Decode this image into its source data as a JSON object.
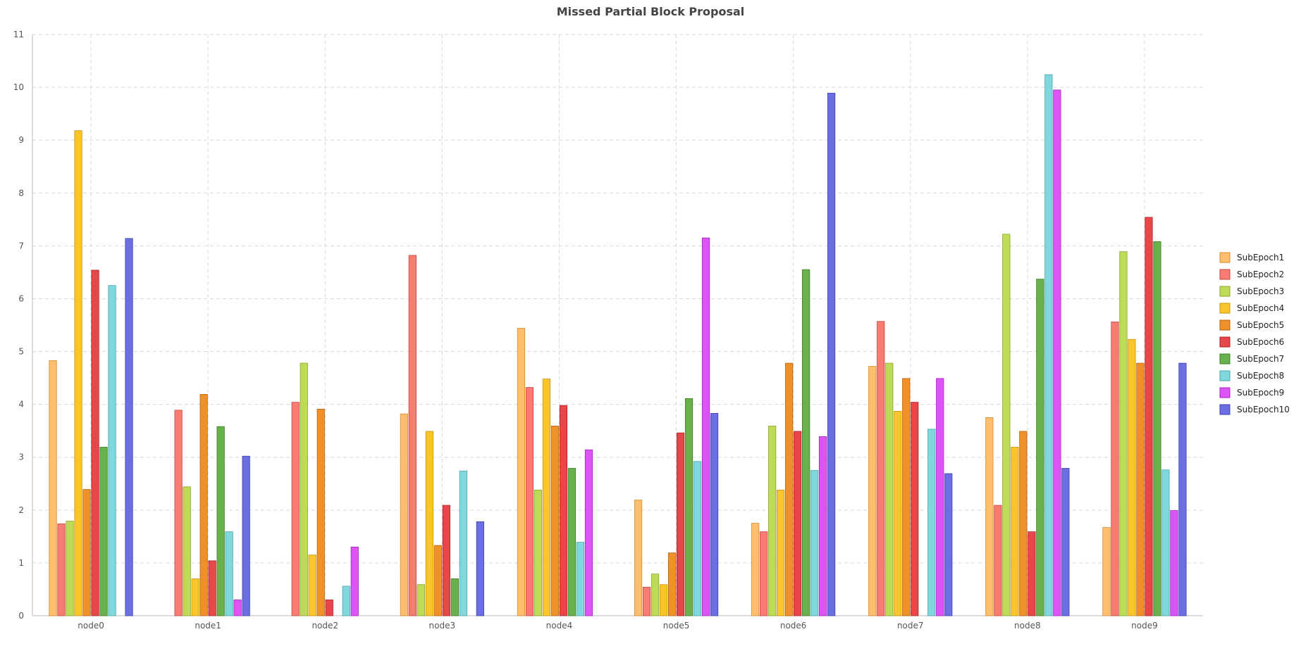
{
  "chart_data": {
    "type": "bar",
    "title": "Missed Partial Block Proposal",
    "xlabel": "",
    "ylabel": "",
    "ylim": [
      0,
      11
    ],
    "yticks": [
      "0",
      "1",
      "2",
      "3",
      "4",
      "5",
      "6",
      "7",
      "8",
      "9",
      "10",
      "11"
    ],
    "grid": true,
    "legend_position": "right",
    "categories": [
      "node0",
      "node1",
      "node2",
      "node3",
      "node4",
      "node5",
      "node6",
      "node7",
      "node8",
      "node9"
    ],
    "series": [
      {
        "name": "SubEpoch1",
        "color": "#fdbf6f",
        "stroke": "#d98a2b",
        "values": [
          4.83,
          0,
          0,
          3.82,
          5.44,
          2.19,
          1.75,
          4.72,
          3.75,
          1.67
        ]
      },
      {
        "name": "SubEpoch2",
        "color": "#f87c72",
        "stroke": "#c9463c",
        "values": [
          1.74,
          3.89,
          4.04,
          6.82,
          4.32,
          0.54,
          1.59,
          5.57,
          2.09,
          5.56
        ]
      },
      {
        "name": "SubEpoch3",
        "color": "#bedb55",
        "stroke": "#8aa52a",
        "values": [
          1.79,
          2.44,
          4.78,
          0.59,
          2.38,
          0.79,
          3.59,
          4.78,
          7.22,
          6.89
        ]
      },
      {
        "name": "SubEpoch4",
        "color": "#f9c52b",
        "stroke": "#c99612",
        "values": [
          9.18,
          0.7,
          1.15,
          3.49,
          4.48,
          0.59,
          2.38,
          3.87,
          3.19,
          5.23
        ]
      },
      {
        "name": "SubEpoch5",
        "color": "#ef9128",
        "stroke": "#b9640f",
        "values": [
          2.39,
          4.19,
          3.91,
          1.33,
          3.59,
          1.19,
          4.78,
          4.49,
          3.49,
          4.78
        ]
      },
      {
        "name": "SubEpoch6",
        "color": "#e8474a",
        "stroke": "#ad2124",
        "values": [
          6.54,
          1.04,
          0.3,
          2.09,
          3.98,
          3.46,
          3.49,
          4.04,
          1.59,
          7.54
        ]
      },
      {
        "name": "SubEpoch7",
        "color": "#6ab04c",
        "stroke": "#3f7d27",
        "values": [
          3.19,
          3.58,
          0,
          0.7,
          2.79,
          4.11,
          6.55,
          0,
          6.37,
          7.08
        ]
      },
      {
        "name": "SubEpoch8",
        "color": "#80d7dd",
        "stroke": "#4aa7ae",
        "values": [
          6.25,
          1.59,
          0.56,
          2.74,
          1.39,
          2.92,
          2.75,
          3.53,
          10.24,
          2.76
        ]
      },
      {
        "name": "SubEpoch9",
        "color": "#dc54f5",
        "stroke": "#a821c4",
        "values": [
          0,
          0.3,
          1.3,
          0,
          3.14,
          7.15,
          3.39,
          4.49,
          9.95,
          1.99
        ]
      },
      {
        "name": "SubEpoch10",
        "color": "#6b6fe2",
        "stroke": "#3d41ad",
        "values": [
          7.14,
          3.02,
          0,
          1.78,
          0,
          3.83,
          9.89,
          2.69,
          2.79,
          4.78
        ]
      }
    ]
  }
}
